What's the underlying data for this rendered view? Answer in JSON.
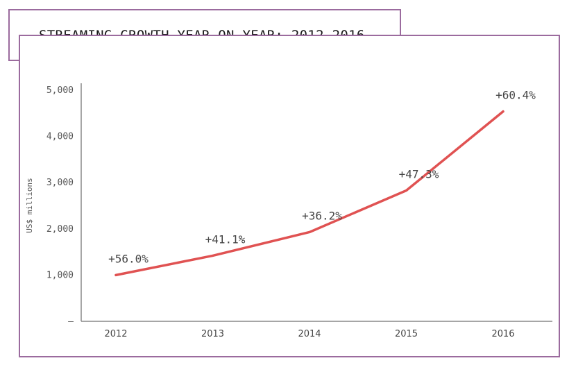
{
  "colors": {
    "frame": "#9b6b9e",
    "line": "#e05252",
    "axis": "#888888"
  },
  "chart_data": {
    "type": "line",
    "title": "STREAMING GROWTH YEAR ON YEAR: 2012–2016",
    "ylabel": "US$ millions",
    "xlabel": "",
    "ylim": [
      0,
      5000
    ],
    "y_ticks": [
      {
        "value": 0,
        "label": "–"
      },
      {
        "value": 1000,
        "label": "1,000"
      },
      {
        "value": 2000,
        "label": "2,000"
      },
      {
        "value": 3000,
        "label": "3,000"
      },
      {
        "value": 4000,
        "label": "4,000"
      },
      {
        "value": 5000,
        "label": "5,000"
      }
    ],
    "categories": [
      "2012",
      "2013",
      "2014",
      "2015",
      "2016"
    ],
    "values": [
      1000,
      1420,
      1930,
      2830,
      4540
    ],
    "data_labels": [
      "+56.0%",
      "+41.1%",
      "+36.2%",
      "+47.3%",
      "+60.4%"
    ],
    "grid": false,
    "legend": "none"
  }
}
